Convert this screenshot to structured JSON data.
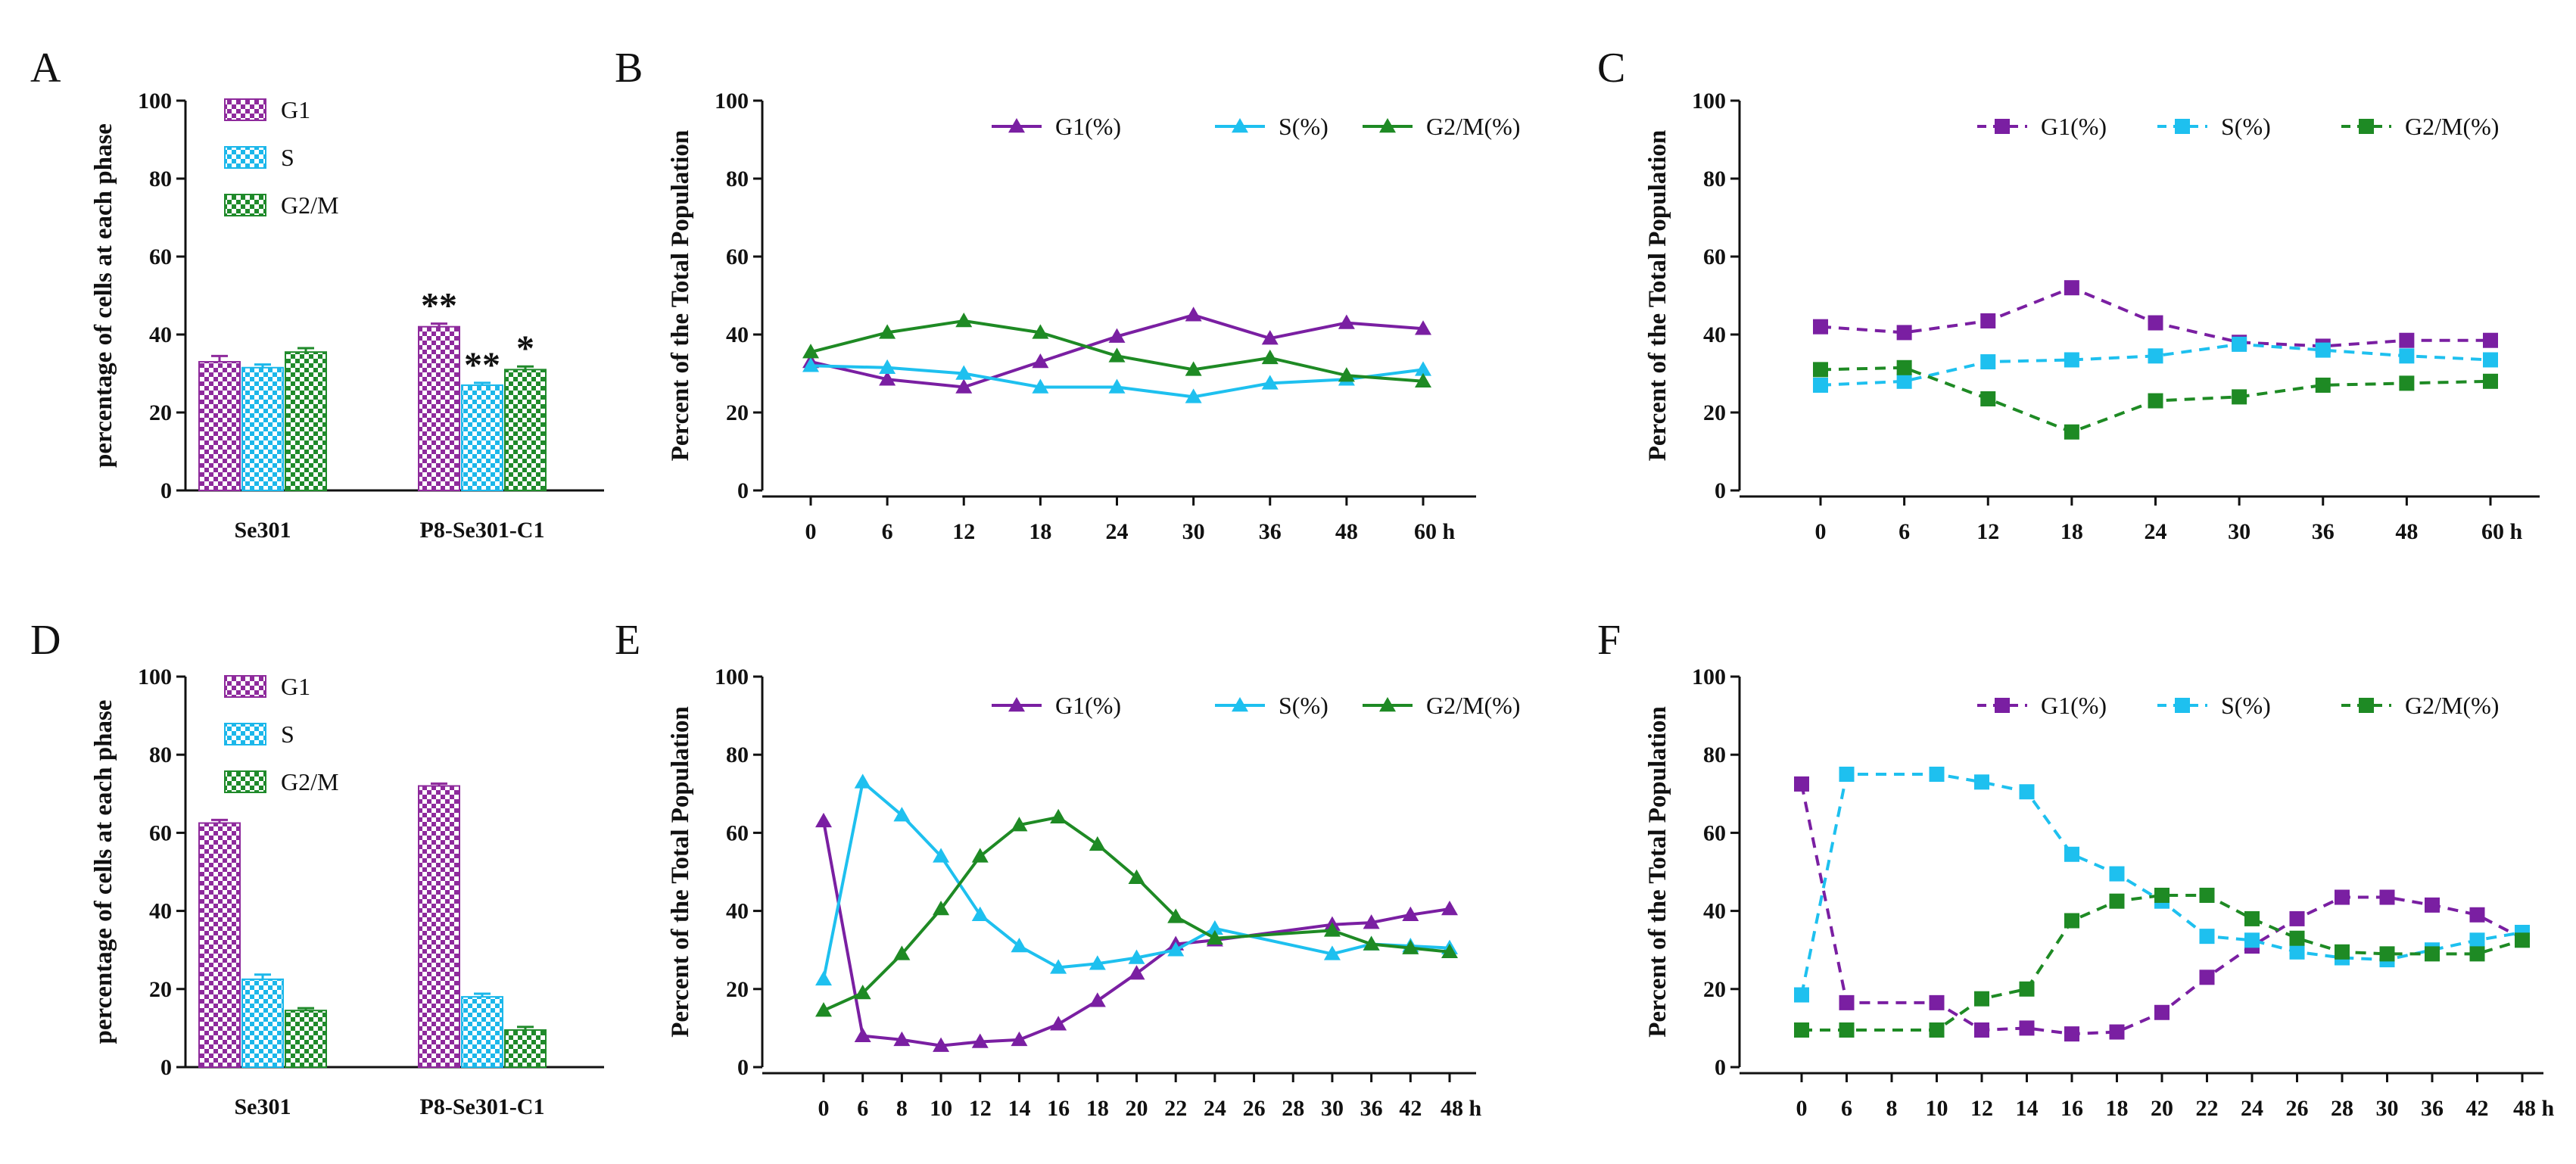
{
  "chart_data": [
    {
      "id": "A",
      "type": "bar",
      "letter": "A",
      "ylabel": "percentage of cells at each phase",
      "ylim": [
        0,
        100
      ],
      "yticks": [
        "0",
        "20",
        "40",
        "60",
        "80",
        "100"
      ],
      "categories": [
        "Se301",
        "P8-Se301-C1"
      ],
      "series": [
        {
          "name": "G1",
          "values": [
            33,
            42
          ],
          "errors": [
            1.5,
            0.8
          ],
          "color": "#8e2a9c"
        },
        {
          "name": "S",
          "values": [
            31.5,
            27
          ],
          "errors": [
            0.8,
            0.6
          ],
          "color": "#1bb7ea"
        },
        {
          "name": "G2/M",
          "values": [
            35.5,
            31
          ],
          "errors": [
            1,
            0.8
          ],
          "color": "#1f8a2a"
        }
      ],
      "annotations": [
        {
          "text": "**",
          "category": 1,
          "series": 0
        },
        {
          "text": "**",
          "category": 1,
          "series": 1
        },
        {
          "text": "*",
          "category": 1,
          "series": 2
        }
      ]
    },
    {
      "id": "B",
      "type": "line",
      "letter": "B",
      "marker": "triangle",
      "dash": false,
      "ylabel": "Percent of the Total Population",
      "ylim": [
        0,
        100
      ],
      "yticks": [
        "0",
        "20",
        "40",
        "60",
        "80",
        "100"
      ],
      "x": [
        "0",
        "6",
        "12",
        "18",
        "24",
        "30",
        "36",
        "48",
        "60 h"
      ],
      "series": [
        {
          "name": "G1(%)",
          "color": "#7a1fa2",
          "values": [
            33,
            28.5,
            26.5,
            33,
            39.5,
            45,
            39,
            43,
            41.5
          ]
        },
        {
          "name": "S(%)",
          "color": "#1ec0ef",
          "values": [
            32,
            31.5,
            30,
            26.5,
            26.5,
            24,
            27.5,
            28.5,
            31
          ]
        },
        {
          "name": "G2/M(%)",
          "color": "#1e8a24",
          "values": [
            35.5,
            40.5,
            43.5,
            40.5,
            34.5,
            31,
            34,
            29.5,
            28
          ]
        }
      ]
    },
    {
      "id": "C",
      "type": "line",
      "letter": "C",
      "marker": "square",
      "dash": true,
      "ylabel": "Percent of the Total Population",
      "ylim": [
        0,
        100
      ],
      "yticks": [
        "0",
        "20",
        "40",
        "60",
        "80",
        "100"
      ],
      "x": [
        "0",
        "6",
        "12",
        "18",
        "24",
        "30",
        "36",
        "48",
        "60 h"
      ],
      "series": [
        {
          "name": "G1(%)",
          "color": "#7a1fa2",
          "values": [
            42,
            40.5,
            43.5,
            52,
            43,
            38,
            37,
            38.5,
            38.5
          ]
        },
        {
          "name": "S(%)",
          "color": "#1ec0ef",
          "values": [
            27,
            28,
            33,
            33.5,
            34.5,
            37.5,
            36,
            34.5,
            33.5
          ]
        },
        {
          "name": "G2/M(%)",
          "color": "#1e8a24",
          "values": [
            31,
            31.5,
            23.5,
            15,
            23,
            24,
            27,
            27.5,
            28
          ]
        }
      ]
    },
    {
      "id": "D",
      "type": "bar",
      "letter": "D",
      "ylabel": "percentage of cells at each phase",
      "ylim": [
        0,
        100
      ],
      "yticks": [
        "0",
        "20",
        "40",
        "60",
        "80",
        "100"
      ],
      "categories": [
        "Se301",
        "P8-Se301-C1"
      ],
      "series": [
        {
          "name": "G1",
          "values": [
            62.5,
            72
          ],
          "errors": [
            0.8,
            0.6
          ],
          "color": "#8e2a9c"
        },
        {
          "name": "S",
          "values": [
            22.5,
            18
          ],
          "errors": [
            1.2,
            0.8
          ],
          "color": "#1bb7ea"
        },
        {
          "name": "G2/M",
          "values": [
            14.5,
            9.5
          ],
          "errors": [
            0.6,
            0.8
          ],
          "color": "#1f8a2a"
        }
      ],
      "annotations": []
    },
    {
      "id": "E",
      "type": "line",
      "letter": "E",
      "marker": "triangle",
      "dash": false,
      "ylabel": "Percent of the Total Population",
      "ylim": [
        0,
        100
      ],
      "yticks": [
        "0",
        "20",
        "40",
        "60",
        "80",
        "100"
      ],
      "x": [
        "0",
        "6",
        "8",
        "10",
        "12",
        "14",
        "16",
        "18",
        "20",
        "22",
        "24",
        "26",
        "28",
        "30",
        "36",
        "42",
        "48 h"
      ],
      "series": [
        {
          "name": "G1(%)",
          "color": "#7a1fa2",
          "values": [
            63,
            8,
            7,
            5.5,
            6.5,
            7,
            11,
            17,
            24,
            31.5,
            32.5,
            null,
            null,
            36.5,
            37,
            39,
            40.5
          ]
        },
        {
          "name": "S(%)",
          "color": "#1ec0ef",
          "values": [
            22.5,
            73,
            64.5,
            54,
            39,
            31,
            25.5,
            26.5,
            28,
            30,
            35.5,
            null,
            null,
            29,
            31.5,
            31,
            30.5
          ]
        },
        {
          "name": "G2/M(%)",
          "color": "#1e8a24",
          "values": [
            14.5,
            19,
            29,
            40.5,
            54,
            62,
            64,
            57,
            48.5,
            38.5,
            33,
            null,
            null,
            35,
            31.5,
            30.5,
            29.5
          ]
        }
      ]
    },
    {
      "id": "F",
      "type": "line",
      "letter": "F",
      "marker": "square",
      "dash": true,
      "ylabel": "Percent of the Total Population",
      "ylim": [
        0,
        100
      ],
      "yticks": [
        "0",
        "20",
        "40",
        "60",
        "80",
        "100"
      ],
      "x": [
        "0",
        "6",
        "8",
        "10",
        "12",
        "14",
        "16",
        "18",
        "20",
        "22",
        "24",
        "26",
        "28",
        "30",
        "36",
        "42",
        "48 h"
      ],
      "series": [
        {
          "name": "G1(%)",
          "color": "#7a1fa2",
          "values": [
            72.5,
            16.5,
            null,
            16.5,
            9.5,
            10,
            8.5,
            9,
            14,
            23,
            31,
            38,
            43.5,
            43.5,
            41.5,
            39,
            33
          ]
        },
        {
          "name": "S(%)",
          "color": "#1ec0ef",
          "values": [
            18.5,
            75,
            null,
            75,
            73,
            70.5,
            54.5,
            49.5,
            42.5,
            33.5,
            32.5,
            29.5,
            28,
            27.5,
            30,
            32.5,
            34.5
          ]
        },
        {
          "name": "G2/M(%)",
          "color": "#1e8a24",
          "values": [
            9.5,
            9.5,
            null,
            9.5,
            17.5,
            20,
            37.5,
            42.5,
            44,
            44,
            38,
            33,
            29.5,
            29,
            29,
            29,
            32.5
          ]
        }
      ]
    }
  ]
}
